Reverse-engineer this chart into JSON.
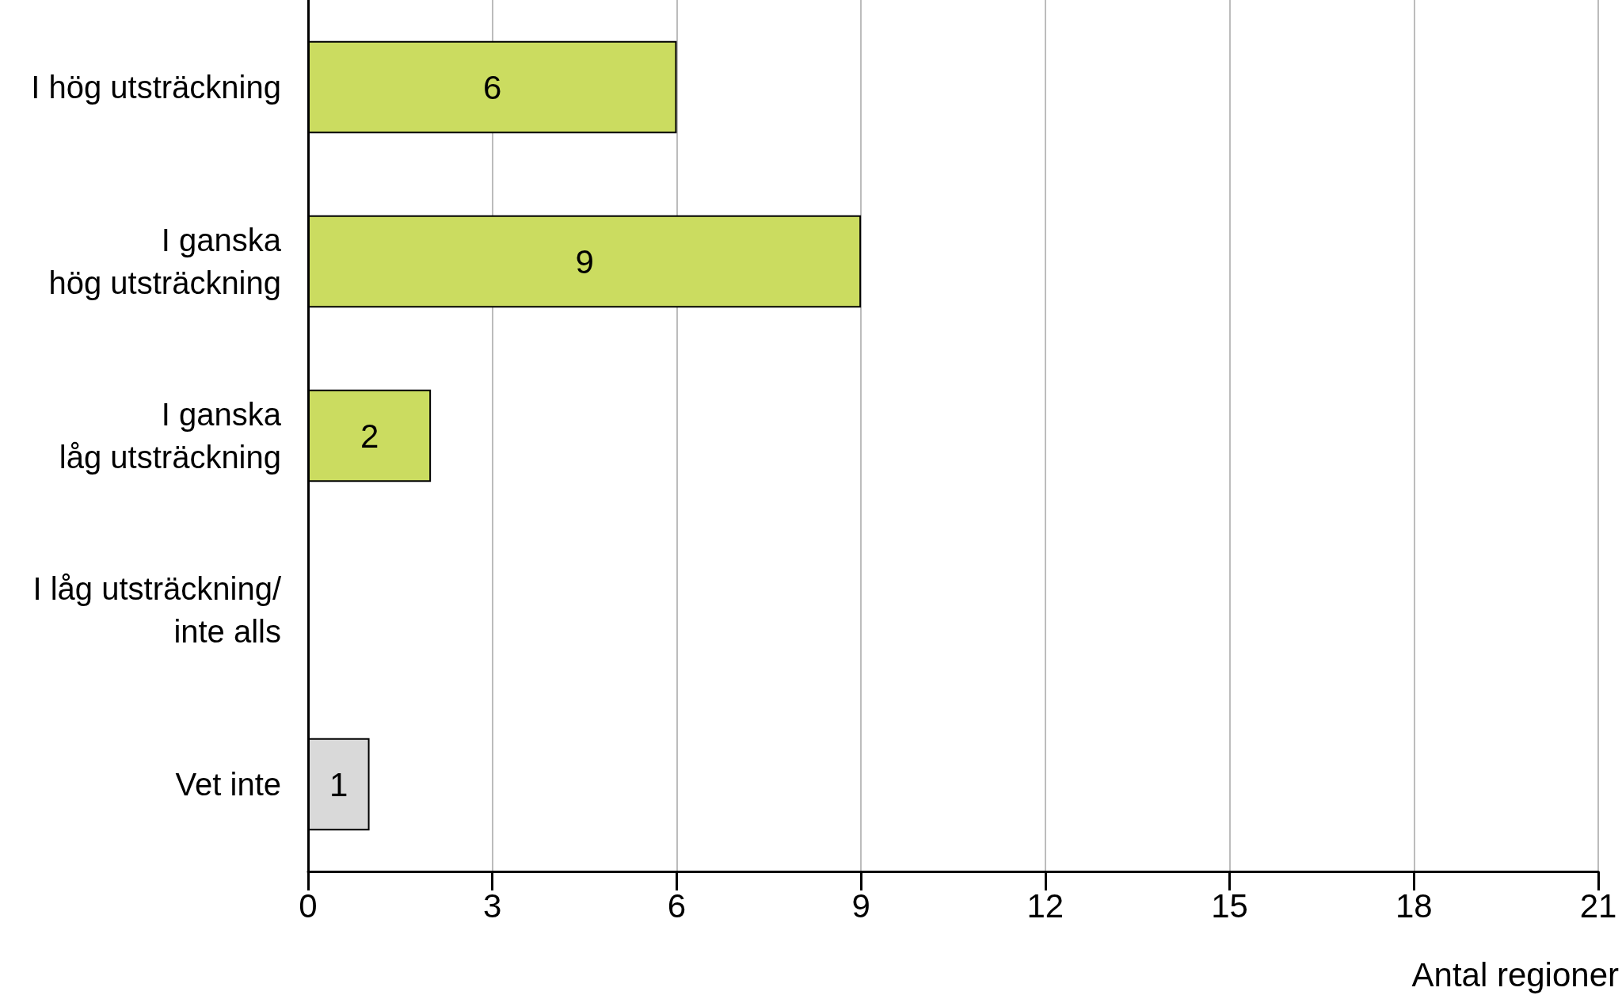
{
  "chart_data": {
    "type": "bar",
    "orientation": "horizontal",
    "categories": [
      "I hög utsträckning",
      "I ganska\nhög utsträckning",
      "I ganska\nlåg utsträckning",
      "I låg utsträckning/\ninte alls",
      "Vet inte"
    ],
    "values": [
      6,
      9,
      2,
      null,
      1
    ],
    "colors": [
      "#cbdc60",
      "#cbdc60",
      "#cbdc60",
      "#cbdc60",
      "#d9d9d9"
    ],
    "xlabel": "Antal regioner",
    "xlim": [
      0,
      21
    ],
    "xticks": [
      0,
      3,
      6,
      9,
      12,
      15,
      18,
      21
    ],
    "grid": "x",
    "data_labels": true
  }
}
